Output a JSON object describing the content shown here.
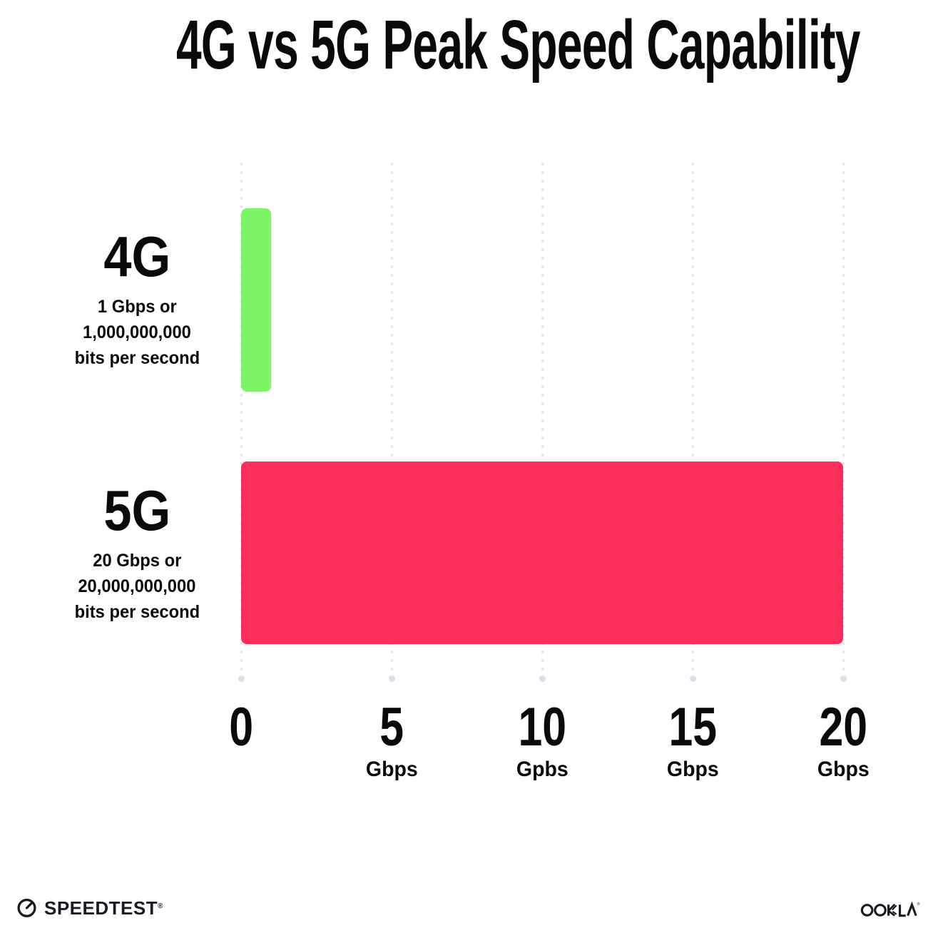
{
  "title": "4G vs 5G Peak Speed Capability",
  "chart_data": {
    "type": "bar",
    "orientation": "horizontal",
    "title": "4G vs 5G Peak Speed Capability",
    "xlim": [
      0,
      20
    ],
    "grid": "dotted-vertical",
    "legend": "none",
    "ticks": [
      {
        "value": 0,
        "label": "0",
        "unit": ""
      },
      {
        "value": 5,
        "label": "5",
        "unit": "Gbps"
      },
      {
        "value": 10,
        "label": "10",
        "unit": "Gpbs"
      },
      {
        "value": 15,
        "label": "15",
        "unit": "Gbps"
      },
      {
        "value": 20,
        "label": "20",
        "unit": "Gbps"
      }
    ],
    "series": [
      {
        "name": "4G",
        "value": 1,
        "color": "#7ef567",
        "description_lines": [
          "1 Gbps or",
          "1,000,000,000",
          "bits per second"
        ]
      },
      {
        "name": "5G",
        "value": 20,
        "color": "#fd2e5a",
        "description_lines": [
          "20 Gbps or",
          "20,000,000,000",
          "bits per second"
        ]
      }
    ]
  },
  "footer": {
    "speedtest_label": "SPEEDTEST",
    "speedtest_reg": "®",
    "ookla_label": "OOKLA",
    "ookla_reg": "®"
  },
  "colors": {
    "background": "#ffffff",
    "text": "#0a0a0a",
    "grid_dot": "#e2e4ec",
    "grid_dot_end": "#dcdfe9",
    "logo": "#191a23"
  }
}
